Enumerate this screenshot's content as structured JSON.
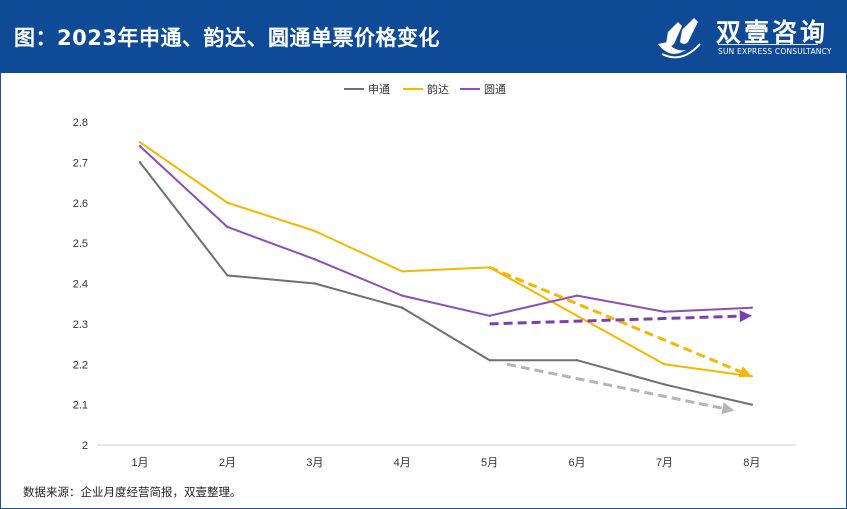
{
  "header": {
    "title": "图：2023年申通、韵达、圆通单票价格变化",
    "logo_cn": "双壹咨询",
    "logo_en": "SUN EXPRESS CONSULTANCY"
  },
  "source": "数据来源：企业月度经营简报，双壹整理。",
  "colors": {
    "header_bg": "#0f4a97",
    "sto": "#707070",
    "yunda": "#f5b800",
    "yto": "#8c4fb5",
    "grey_arrow": "#b5b5b5",
    "purple_arrow": "#7b3fb0"
  },
  "chart_data": {
    "type": "line",
    "title": "",
    "xlabel": "",
    "ylabel": "",
    "categories": [
      "1月",
      "2月",
      "3月",
      "4月",
      "5月",
      "6月",
      "7月",
      "8月"
    ],
    "ylim": [
      2,
      2.8
    ],
    "yticks": [
      "2",
      "2.1",
      "2.2",
      "2.3",
      "2.4",
      "2.5",
      "2.6",
      "2.7",
      "2.8"
    ],
    "legend_position": "top-center",
    "series": [
      {
        "name": "申通",
        "color": "#707070",
        "values": [
          2.7,
          2.42,
          2.4,
          2.34,
          2.21,
          2.21,
          2.15,
          2.1
        ]
      },
      {
        "name": "韵达",
        "color": "#f5b800",
        "values": [
          2.75,
          2.6,
          2.53,
          2.43,
          2.44,
          2.32,
          2.2,
          2.17
        ]
      },
      {
        "name": "圆通",
        "color": "#8c4fb5",
        "values": [
          2.74,
          2.54,
          2.46,
          2.37,
          2.32,
          2.37,
          2.33,
          2.34
        ]
      }
    ],
    "trend_arrows": [
      {
        "series": "韵达",
        "color": "#f5b800",
        "from": {
          "x": 5,
          "y": 2.44
        },
        "to": {
          "x": 8,
          "y": 2.17
        }
      },
      {
        "series": "圆通",
        "color": "#7b3fb0",
        "from": {
          "x": 5,
          "y": 2.3
        },
        "to": {
          "x": 8,
          "y": 2.32
        }
      },
      {
        "series": "申通",
        "color": "#b5b5b5",
        "from": {
          "x": 5.2,
          "y": 2.2
        },
        "to": {
          "x": 7.8,
          "y": 2.085
        }
      }
    ]
  }
}
